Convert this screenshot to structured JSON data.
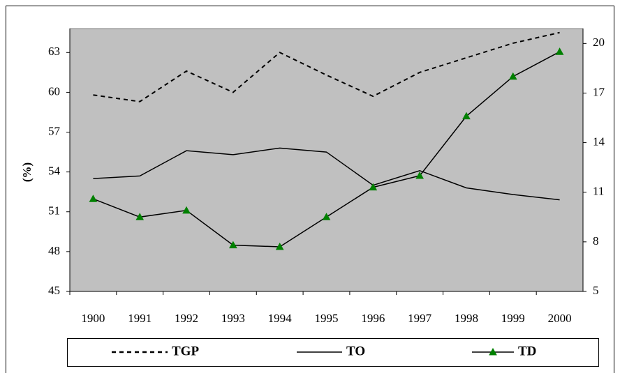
{
  "chart_data": {
    "type": "line",
    "y_label": "(%)",
    "categories": [
      "1900",
      "1991",
      "1992",
      "1993",
      "1994",
      "1995",
      "1996",
      "1997",
      "1998",
      "1999",
      "2000"
    ],
    "ylim": [
      45,
      64.8
    ],
    "yticks": [
      45,
      48,
      51,
      54,
      57,
      60,
      63
    ],
    "y2lim": [
      5,
      20.9
    ],
    "y2ticks": [
      5,
      8,
      11,
      14,
      17,
      20
    ],
    "plot_background": "#c0c0c0",
    "series": [
      {
        "name": "TGP",
        "color": "#000000",
        "line_style": "dotted",
        "values": [
          59.8,
          59.3,
          61.6,
          60.0,
          63.0,
          61.3,
          59.7,
          61.5,
          62.6,
          63.7,
          64.5
        ]
      },
      {
        "name": "TO",
        "color": "#000000",
        "line_style": "solid",
        "values": [
          53.5,
          53.7,
          55.6,
          55.3,
          55.8,
          55.5,
          53.0,
          54.1,
          52.8,
          52.3,
          51.9
        ]
      },
      {
        "name": "TD",
        "color": "#000000",
        "line_style": "solid",
        "marker": "triangle",
        "marker_color": "#008000",
        "axis": "y2",
        "values": [
          10.6,
          9.5,
          9.9,
          7.8,
          7.7,
          9.5,
          11.3,
          12.0,
          15.6,
          18.0,
          19.5
        ]
      }
    ]
  }
}
